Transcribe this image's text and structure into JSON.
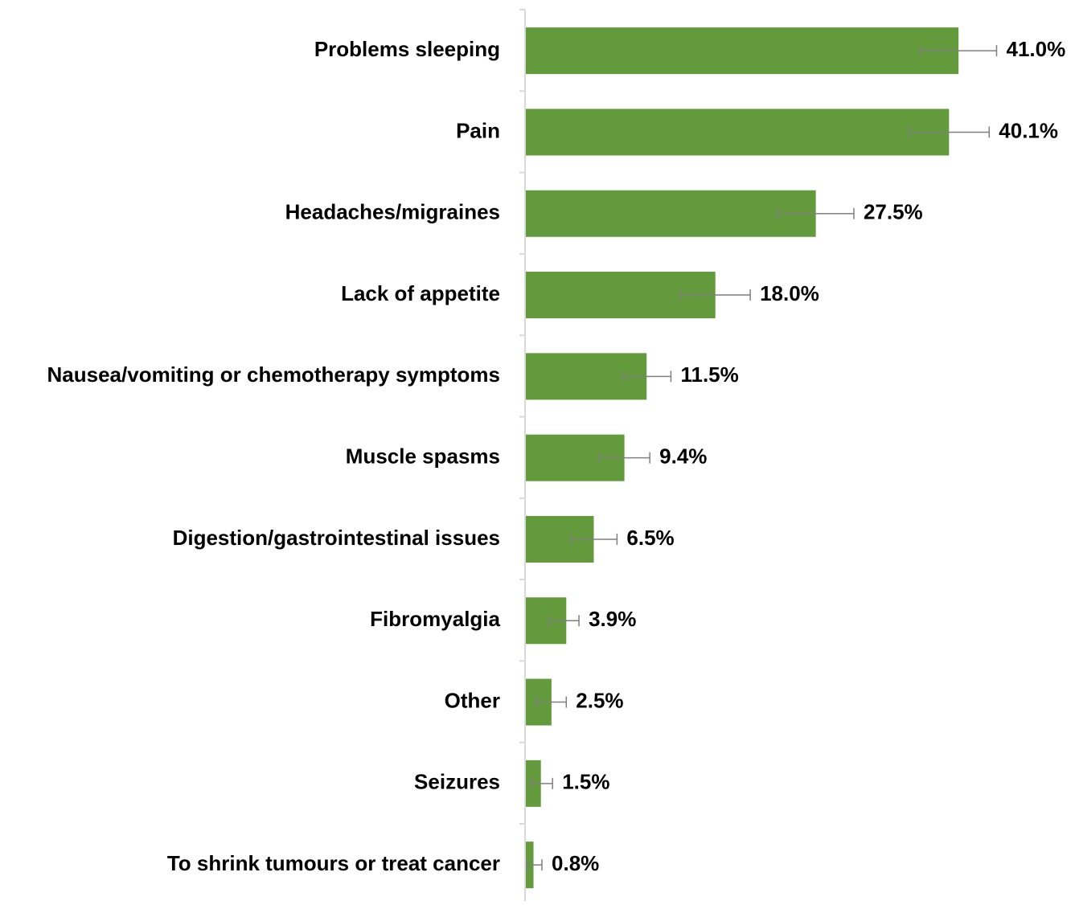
{
  "chart_data": {
    "type": "bar",
    "orientation": "horizontal",
    "categories": [
      "Problems sleeping",
      "Pain",
      "Headaches/migraines",
      "Lack of appetite",
      "Nausea/vomiting or chemotherapy symptoms",
      "Muscle spasms",
      "Digestion/gastrointestinal issues",
      "Fibromyalgia",
      "Other",
      "Seizures",
      "To shrink tumours or treat cancer"
    ],
    "values": [
      41.0,
      40.1,
      27.5,
      18.0,
      11.5,
      9.4,
      6.5,
      3.9,
      2.5,
      1.5,
      0.8
    ],
    "data_labels": [
      "41.0%",
      "40.1%",
      "27.5%",
      "18.0%",
      "11.5%",
      "9.4%",
      "6.5%",
      "3.9%",
      "2.5%",
      "1.5%",
      "0.8%"
    ],
    "error_bars": {
      "lower": [
        37.4,
        36.3,
        23.9,
        14.7,
        9.2,
        7.0,
        4.3,
        2.3,
        1.1,
        0.6,
        0.2
      ],
      "upper": [
        44.6,
        43.9,
        31.1,
        21.3,
        13.8,
        11.8,
        8.7,
        5.1,
        3.9,
        2.6,
        1.6
      ]
    },
    "xlim": [
      0,
      50
    ],
    "grid": false,
    "legend": "none",
    "bar_color": "#639A3C",
    "error_bar_color": "#7F7F7F",
    "axis_color": "#D9D9D9"
  }
}
